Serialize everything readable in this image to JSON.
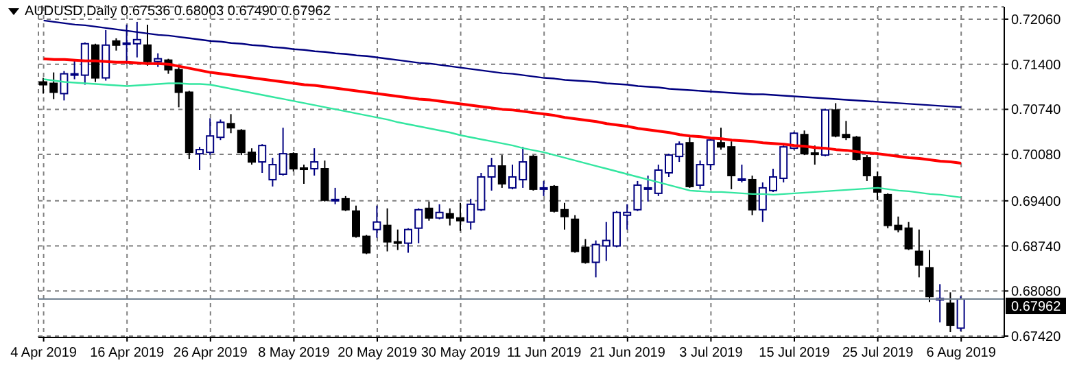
{
  "chart_data": {
    "type": "candlestick",
    "title": "AUDUSD,Daily  0.67536 0.68003 0.67490 0.67962",
    "categories": [
      "4 Apr 2019",
      null,
      null,
      null,
      null,
      null,
      null,
      null,
      "16 Apr 2019",
      null,
      null,
      null,
      null,
      null,
      null,
      null,
      "26 Apr 2019",
      null,
      null,
      null,
      null,
      null,
      null,
      null,
      "8 May 2019",
      null,
      null,
      null,
      null,
      null,
      null,
      null,
      "20 May 2019",
      null,
      null,
      null,
      null,
      null,
      null,
      null,
      "30 May 2019",
      null,
      null,
      null,
      null,
      null,
      null,
      null,
      "11 Jun 2019",
      null,
      null,
      null,
      null,
      null,
      null,
      null,
      "21 Jun 2019",
      null,
      null,
      null,
      null,
      null,
      null,
      null,
      "3 Jul 2019",
      null,
      null,
      null,
      null,
      null,
      null,
      null,
      "15 Jul 2019",
      null,
      null,
      null,
      null,
      null,
      null,
      null,
      "25 Jul 2019",
      null,
      null,
      null,
      null,
      null,
      null,
      null,
      "6 Aug 2019"
    ],
    "ohlc": [
      [
        0.7114,
        0.712,
        0.7097,
        0.711
      ],
      [
        0.7112,
        0.7128,
        0.7089,
        0.7099
      ],
      [
        0.7097,
        0.713,
        0.7087,
        0.7126
      ],
      [
        0.7124,
        0.7146,
        0.7118,
        0.7126
      ],
      [
        0.7124,
        0.7172,
        0.711,
        0.717
      ],
      [
        0.7168,
        0.717,
        0.7114,
        0.712
      ],
      [
        0.712,
        0.719,
        0.7116,
        0.7168
      ],
      [
        0.7174,
        0.7178,
        0.716,
        0.7168
      ],
      [
        0.717,
        0.7198,
        0.714,
        0.7171
      ],
      [
        0.717,
        0.7202,
        0.715,
        0.7176
      ],
      [
        0.7168,
        0.7198,
        0.7138,
        0.7144
      ],
      [
        0.7144,
        0.7156,
        0.7136,
        0.7148
      ],
      [
        0.7146,
        0.7148,
        0.7126,
        0.7132
      ],
      [
        0.7132,
        0.7136,
        0.7077,
        0.7099
      ],
      [
        0.7099,
        0.7101,
        0.7001,
        0.7011
      ],
      [
        0.7009,
        0.7019,
        0.6985,
        0.7015
      ],
      [
        0.7011,
        0.7061,
        0.7007,
        0.7035
      ],
      [
        0.7033,
        0.7059,
        0.7029,
        0.7055
      ],
      [
        0.7053,
        0.7067,
        0.7039,
        0.7047
      ],
      [
        0.7043,
        0.7045,
        0.7007,
        0.7011
      ],
      [
        0.7011,
        0.7017,
        0.6993,
        0.6997
      ],
      [
        0.6997,
        0.7023,
        0.6981,
        0.7021
      ],
      [
        0.6971,
        0.7003,
        0.6961,
        0.6993
      ],
      [
        0.6979,
        0.7047,
        0.6977,
        0.7009
      ],
      [
        0.7009,
        0.7011,
        0.6983,
        0.6987
      ],
      [
        0.6988,
        0.6993,
        0.6965,
        0.6987
      ],
      [
        0.6987,
        0.7017,
        0.6977,
        0.6997
      ],
      [
        0.6987,
        0.6999,
        0.6939,
        0.6941
      ],
      [
        0.6941,
        0.6959,
        0.6935,
        0.6942
      ],
      [
        0.6943,
        0.6947,
        0.6925,
        0.6927
      ],
      [
        0.6925,
        0.6933,
        0.6886,
        0.6888
      ],
      [
        0.6888,
        0.689,
        0.6862,
        0.6864
      ],
      [
        0.6898,
        0.6933,
        0.6886,
        0.6909
      ],
      [
        0.6904,
        0.6929,
        0.6866,
        0.688
      ],
      [
        0.688,
        0.6898,
        0.6868,
        0.6879
      ],
      [
        0.6878,
        0.69,
        0.6864,
        0.6898
      ],
      [
        0.69,
        0.6929,
        0.6878,
        0.6927
      ],
      [
        0.6929,
        0.6939,
        0.6911,
        0.6915
      ],
      [
        0.6915,
        0.6935,
        0.6913,
        0.6923
      ],
      [
        0.6921,
        0.6929,
        0.6904,
        0.6915
      ],
      [
        0.6915,
        0.6937,
        0.6896,
        0.6911
      ],
      [
        0.6909,
        0.6943,
        0.6898,
        0.6935
      ],
      [
        0.6927,
        0.6981,
        0.6925,
        0.6975
      ],
      [
        0.6975,
        0.7003,
        0.6955,
        0.6991
      ],
      [
        0.6991,
        0.7007,
        0.6959,
        0.6965
      ],
      [
        0.6959,
        0.6993,
        0.6957,
        0.6975
      ],
      [
        0.6971,
        0.7019,
        0.6959,
        0.6997
      ],
      [
        0.7005,
        0.7007,
        0.6955,
        0.6957
      ],
      [
        0.6958,
        0.6969,
        0.6947,
        0.6959
      ],
      [
        0.6961,
        0.6963,
        0.6923,
        0.6925
      ],
      [
        0.6927,
        0.6937,
        0.6898,
        0.6917
      ],
      [
        0.6913,
        0.6919,
        0.6864,
        0.6866
      ],
      [
        0.6872,
        0.6884,
        0.6848,
        0.685
      ],
      [
        0.685,
        0.6882,
        0.6828,
        0.6876
      ],
      [
        0.6874,
        0.6909,
        0.6852,
        0.6882
      ],
      [
        0.6874,
        0.6925,
        0.6872,
        0.6923
      ],
      [
        0.6919,
        0.6935,
        0.6898,
        0.6923
      ],
      [
        0.6927,
        0.6969,
        0.6925,
        0.6963
      ],
      [
        0.6958,
        0.6977,
        0.6939,
        0.6959
      ],
      [
        0.6951,
        0.6993,
        0.6947,
        0.6985
      ],
      [
        0.6981,
        0.7009,
        0.6975,
        0.7007
      ],
      [
        0.7005,
        0.7027,
        0.6997,
        0.7023
      ],
      [
        0.7025,
        0.7033,
        0.6959,
        0.6961
      ],
      [
        0.6963,
        0.6999,
        0.6957,
        0.6993
      ],
      [
        0.6993,
        0.7031,
        0.6985,
        0.7029
      ],
      [
        0.7025,
        0.7047,
        0.7015,
        0.7019
      ],
      [
        0.7019,
        0.7027,
        0.6957,
        0.6977
      ],
      [
        0.6971,
        0.6993,
        0.6967,
        0.6972
      ],
      [
        0.6971,
        0.6977,
        0.6919,
        0.6927
      ],
      [
        0.6927,
        0.6967,
        0.6909,
        0.6959
      ],
      [
        0.6955,
        0.6987,
        0.6953,
        0.6975
      ],
      [
        0.6973,
        0.7021,
        0.6967,
        0.7019
      ],
      [
        0.7017,
        0.7041,
        0.7015,
        0.7039
      ],
      [
        0.7037,
        0.7043,
        0.7007,
        0.7009
      ],
      [
        0.701,
        0.7021,
        0.6993,
        0.7009
      ],
      [
        0.7007,
        0.7075,
        0.7005,
        0.7073
      ],
      [
        0.7073,
        0.7083,
        0.7033,
        0.7035
      ],
      [
        0.7037,
        0.7057,
        0.7029,
        0.7033
      ],
      [
        0.7033,
        0.7035,
        0.6999,
        0.7001
      ],
      [
        0.7003,
        0.7007,
        0.6969,
        0.6977
      ],
      [
        0.6975,
        0.6983,
        0.6941,
        0.6953
      ],
      [
        0.6949,
        0.6951,
        0.69,
        0.6904
      ],
      [
        0.6904,
        0.6917,
        0.6894,
        0.6898
      ],
      [
        0.69,
        0.6909,
        0.6868,
        0.687
      ],
      [
        0.6866,
        0.6898,
        0.6828,
        0.6846
      ],
      [
        0.6842,
        0.6868,
        0.6792,
        0.68
      ],
      [
        0.6796,
        0.6818,
        0.6762,
        0.6797
      ],
      [
        0.679,
        0.6806,
        0.6748,
        0.6758
      ],
      [
        0.67536,
        0.68003,
        0.6749,
        0.67962
      ]
    ],
    "colors": [
      "#000000",
      "#000000",
      "#000080",
      "#000080",
      "#000080",
      "#000000",
      "#000080",
      "#000000",
      "#000080",
      "#000080",
      "#000000",
      "#000080",
      "#000000",
      "#000000",
      "#000000",
      "#000080",
      "#000080",
      "#000080",
      "#000000",
      "#000000",
      "#000000",
      "#000080",
      "#000080",
      "#000080",
      "#000000",
      "#000000",
      "#000080",
      "#000000",
      "#000080",
      "#000000",
      "#000000",
      "#000000",
      "#000080",
      "#000000",
      "#000000",
      "#000080",
      "#000080",
      "#000000",
      "#000080",
      "#000000",
      "#000000",
      "#000080",
      "#000080",
      "#000080",
      "#000000",
      "#000080",
      "#000080",
      "#000000",
      "#000080",
      "#000000",
      "#000000",
      "#000000",
      "#000000",
      "#000080",
      "#000080",
      "#000080",
      "#000080",
      "#000080",
      "#000080",
      "#000080",
      "#000080",
      "#000080",
      "#000000",
      "#000080",
      "#000080",
      "#000000",
      "#000000",
      "#000080",
      "#000000",
      "#000080",
      "#000080",
      "#000080",
      "#000080",
      "#000000",
      "#000000",
      "#000080",
      "#000000",
      "#000000",
      "#000000",
      "#000000",
      "#000000",
      "#000000",
      "#000000",
      "#000000",
      "#000000",
      "#000000",
      "#000080",
      "#000000",
      "#000080"
    ],
    "series": [
      {
        "type": "line",
        "color": "#000080",
        "values": [
          0.7204,
          0.7202,
          0.72,
          0.7198,
          0.7197,
          0.7195,
          0.7193,
          0.7191,
          0.7189,
          0.7187,
          0.7185,
          0.7183,
          0.7182,
          0.718,
          0.7178,
          0.7176,
          0.7174,
          0.7173,
          0.7171,
          0.717,
          0.7168,
          0.7167,
          0.7165,
          0.7164,
          0.7162,
          0.7161,
          0.7159,
          0.7158,
          0.7156,
          0.7155,
          0.7153,
          0.7152,
          0.715,
          0.7148,
          0.7146,
          0.7144,
          0.7142,
          0.7141,
          0.7139,
          0.7137,
          0.7135,
          0.7133,
          0.7131,
          0.7129,
          0.7127,
          0.7126,
          0.7124,
          0.7122,
          0.712,
          0.7119,
          0.7117,
          0.7116,
          0.7115,
          0.7114,
          0.7112,
          0.7111,
          0.711,
          0.7108,
          0.7107,
          0.7106,
          0.7104,
          0.7103,
          0.7102,
          0.7101,
          0.71,
          0.7099,
          0.7098,
          0.7097,
          0.7096,
          0.7096,
          0.7095,
          0.7094,
          0.7093,
          0.7092,
          0.7091,
          0.709,
          0.7089,
          0.7088,
          0.7087,
          0.7086,
          0.7085,
          0.7084,
          0.7083,
          0.7082,
          0.7081,
          0.708,
          0.7079,
          0.7078,
          0.7077
        ]
      },
      {
        "type": "line",
        "color": "#ff0000",
        "values": [
          0.7148,
          0.7147,
          0.7147,
          0.7146,
          0.7145,
          0.7145,
          0.7144,
          0.7143,
          0.7143,
          0.7142,
          0.7141,
          0.7141,
          0.714,
          0.7137,
          0.7134,
          0.7131,
          0.7128,
          0.7126,
          0.7124,
          0.7122,
          0.712,
          0.7118,
          0.7116,
          0.7114,
          0.7112,
          0.711,
          0.7109,
          0.7107,
          0.7105,
          0.7103,
          0.7101,
          0.7099,
          0.7097,
          0.7095,
          0.7093,
          0.7091,
          0.7089,
          0.7088,
          0.7086,
          0.7084,
          0.7082,
          0.708,
          0.7078,
          0.7076,
          0.7074,
          0.7073,
          0.7071,
          0.7069,
          0.7067,
          0.7065,
          0.7062,
          0.706,
          0.7058,
          0.7056,
          0.7053,
          0.7051,
          0.7049,
          0.7046,
          0.7044,
          0.7042,
          0.704,
          0.7037,
          0.7035,
          0.7034,
          0.7032,
          0.7031,
          0.7029,
          0.7028,
          0.7027,
          0.7025,
          0.7024,
          0.7023,
          0.7021,
          0.702,
          0.7018,
          0.7017,
          0.7015,
          0.7014,
          0.7012,
          0.701,
          0.7009,
          0.7007,
          0.7005,
          0.7003,
          0.7002,
          0.7,
          0.6998,
          0.6997,
          0.6995
        ]
      },
      {
        "type": "line",
        "color": "#33e6a0",
        "values": [
          0.7118,
          0.7116,
          0.7114,
          0.7113,
          0.7112,
          0.7111,
          0.711,
          0.7109,
          0.7108,
          0.7109,
          0.711,
          0.7111,
          0.7112,
          0.7112,
          0.7111,
          0.7111,
          0.711,
          0.7107,
          0.7104,
          0.7101,
          0.7098,
          0.7095,
          0.7092,
          0.7089,
          0.7086,
          0.7083,
          0.708,
          0.7077,
          0.7074,
          0.7071,
          0.7068,
          0.7065,
          0.7062,
          0.7059,
          0.7055,
          0.7052,
          0.7049,
          0.7046,
          0.7043,
          0.704,
          0.7036,
          0.7033,
          0.703,
          0.7027,
          0.7024,
          0.7021,
          0.7017,
          0.7014,
          0.7011,
          0.7007,
          0.7003,
          0.6999,
          0.6995,
          0.6991,
          0.6987,
          0.6983,
          0.6979,
          0.6975,
          0.6971,
          0.6967,
          0.6963,
          0.6959,
          0.6955,
          0.6954,
          0.6953,
          0.6953,
          0.6952,
          0.6951,
          0.695,
          0.695,
          0.6949,
          0.695,
          0.6951,
          0.6952,
          0.6953,
          0.6954,
          0.6955,
          0.6956,
          0.6957,
          0.6958,
          0.6959,
          0.6957,
          0.6955,
          0.6954,
          0.6952,
          0.695,
          0.6949,
          0.6947,
          0.6945
        ]
      }
    ],
    "ylim": [
      0.674,
      0.7224
    ],
    "yticks": [
      {
        "value": 0.7206,
        "label": "0.72060"
      },
      {
        "value": 0.714,
        "label": "0.71400"
      },
      {
        "value": 0.7074,
        "label": "0.70740"
      },
      {
        "value": 0.7008,
        "label": "0.70080"
      },
      {
        "value": 0.694,
        "label": "0.69400"
      },
      {
        "value": 0.6874,
        "label": "0.68740"
      },
      {
        "value": 0.6808,
        "label": "0.68080"
      },
      {
        "value": 0.6742,
        "label": "0.67420"
      }
    ],
    "ref_lines": [
      {
        "axis": "y",
        "value": 0.67962,
        "label": "0.67962",
        "color": "#708090"
      }
    ],
    "grid": true
  }
}
